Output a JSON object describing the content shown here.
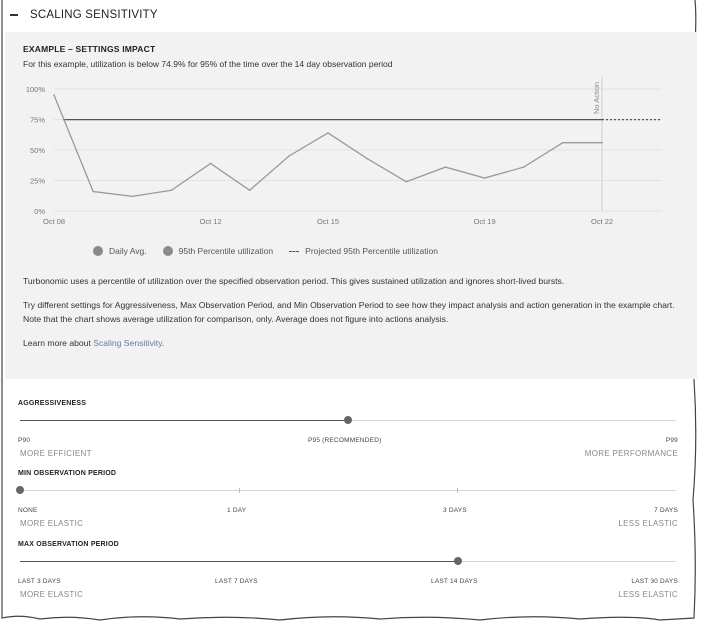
{
  "header": {
    "title": "SCALING SENSITIVITY"
  },
  "example": {
    "title": "EXAMPLE – SETTINGS IMPACT",
    "description": "For this example, utilization is below 74.9% for 95% of the time over the 14 day observation period",
    "legend": {
      "daily_avg": "Daily Avg.",
      "percentile": "95th Percentile utilization",
      "projected": "Projected 95th Percentile utilization"
    },
    "no_action_label": "No Action"
  },
  "chart_data": {
    "type": "line",
    "y_ticks": [
      "100%",
      "75%",
      "50%",
      "25%",
      "0%"
    ],
    "x_ticks": [
      "Oct 08",
      "Oct 12",
      "Oct 15",
      "Oct 19",
      "Oct 22"
    ],
    "ylim": [
      0,
      100
    ],
    "series": [
      {
        "name": "Daily Avg.",
        "x": [
          "Oct 08",
          "Oct 09",
          "Oct 10",
          "Oct 11",
          "Oct 12",
          "Oct 13",
          "Oct 14",
          "Oct 15",
          "Oct 16",
          "Oct 17",
          "Oct 18",
          "Oct 19",
          "Oct 20",
          "Oct 21",
          "Oct 22"
        ],
        "values": [
          95,
          16,
          12,
          17,
          39,
          17,
          45,
          64,
          43,
          24,
          36,
          27,
          36,
          56,
          56
        ]
      },
      {
        "name": "95th Percentile utilization",
        "values": [
          74.9
        ]
      },
      {
        "name": "Projected 95th Percentile utilization",
        "values": [
          74.9
        ]
      }
    ],
    "colors": {
      "line": "#9a9a9a",
      "percentile": "#555555",
      "grid": "#e2e2e2"
    }
  },
  "text": {
    "p1": "Turbonomic uses a percentile of utilization over the specified observation period. This gives sustained utilization and ignores short-lived bursts.",
    "p2": "Try different settings for Aggressiveness, Max Observation Period, and Min Observation Period to see how they impact analysis and action generation in the example chart. Note that the chart shows average utilization for comparison, only. Average does not figure into actions analysis.",
    "p3_prefix": "Learn more about ",
    "p3_link": "Scaling Sensitivity",
    "p3_suffix": "."
  },
  "aggressiveness": {
    "title": "AGGRESSIVENESS",
    "stops": [
      "P90",
      "P95 (RECOMMENDED)",
      "P99"
    ],
    "left_label": "MORE EFFICIENT",
    "right_label": "MORE PERFORMANCE",
    "value_fraction": 0.5
  },
  "min_observation": {
    "title": "MIN OBSERVATION PERIOD",
    "stops": [
      "NONE",
      "1 DAY",
      "3 DAYS",
      "7 DAYS"
    ],
    "left_label": "MORE ELASTIC",
    "right_label": "LESS ELASTIC",
    "value_fraction": 0
  },
  "max_observation": {
    "title": "MAX OBSERVATION PERIOD",
    "stops": [
      "LAST 3 DAYS",
      "LAST 7 DAYS",
      "LAST 14 DAYS",
      "LAST 30 DAYS"
    ],
    "left_label": "MORE ELASTIC",
    "right_label": "LESS ELASTIC",
    "value_fraction": 0.667
  }
}
